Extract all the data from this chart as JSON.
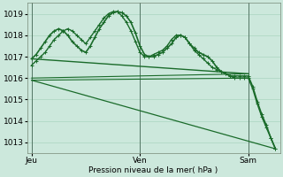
{
  "bg_color": "#cce8dc",
  "grid_color": "#aad4c0",
  "line_color": "#1a6b2a",
  "marker": "+",
  "xlabel": "Pression niveau de la mer( hPa )",
  "yticks": [
    1013,
    1014,
    1015,
    1016,
    1017,
    1018,
    1019
  ],
  "xtick_labels": [
    "Jeu",
    "Ven",
    "Sam"
  ],
  "xtick_positions": [
    0,
    48,
    96
  ],
  "ylim": [
    1012.5,
    1019.5
  ],
  "xlim": [
    -2,
    110
  ],
  "vlines": [
    0,
    48,
    96
  ],
  "lines": [
    {
      "x": [
        0,
        2,
        4,
        6,
        8,
        10,
        12,
        14,
        16,
        18,
        20,
        22,
        24,
        26,
        28,
        30,
        32,
        34,
        36,
        38,
        40,
        42,
        44,
        46,
        48,
        50,
        52,
        54,
        56,
        58,
        60,
        62,
        64,
        66,
        68,
        70,
        72,
        74,
        76,
        78,
        80,
        82,
        84,
        86,
        88,
        90,
        92,
        94,
        96,
        98,
        100,
        102,
        104,
        106,
        108
      ],
      "y": [
        1016.9,
        1017.1,
        1017.4,
        1017.7,
        1018.0,
        1018.2,
        1018.3,
        1018.2,
        1018.0,
        1017.7,
        1017.5,
        1017.3,
        1017.2,
        1017.5,
        1017.9,
        1018.3,
        1018.6,
        1018.9,
        1019.05,
        1019.1,
        1019.05,
        1018.9,
        1018.6,
        1018.1,
        1017.5,
        1017.1,
        1017.0,
        1017.0,
        1017.1,
        1017.2,
        1017.4,
        1017.6,
        1017.9,
        1018.0,
        1017.9,
        1017.6,
        1017.4,
        1017.2,
        1017.1,
        1017.0,
        1016.8,
        1016.5,
        1016.3,
        1016.2,
        1016.1,
        1016.0,
        1016.0,
        1016.0,
        1016.0,
        1015.5,
        1014.8,
        1014.2,
        1013.7,
        1013.2,
        1012.7
      ],
      "lw": 1.2,
      "marker_size": 3,
      "has_marker": true
    },
    {
      "x": [
        0,
        2,
        4,
        6,
        8,
        10,
        12,
        14,
        16,
        18,
        20,
        22,
        24,
        26,
        28,
        30,
        32,
        34,
        36,
        38,
        40,
        42,
        44,
        46,
        48,
        50,
        52,
        54,
        56,
        58,
        60,
        62,
        64,
        66,
        68,
        70,
        72,
        74,
        76,
        78,
        80,
        82,
        84,
        86,
        88,
        90,
        92,
        94,
        96,
        98,
        100,
        102,
        104,
        106,
        108
      ],
      "y": [
        1016.6,
        1016.8,
        1017.0,
        1017.2,
        1017.5,
        1017.8,
        1018.0,
        1018.2,
        1018.3,
        1018.2,
        1018.0,
        1017.8,
        1017.6,
        1017.9,
        1018.2,
        1018.5,
        1018.8,
        1019.0,
        1019.1,
        1019.1,
        1018.9,
        1018.6,
        1018.2,
        1017.7,
        1017.2,
        1017.0,
        1017.0,
        1017.1,
        1017.2,
        1017.3,
        1017.5,
        1017.8,
        1018.0,
        1018.0,
        1017.9,
        1017.6,
        1017.3,
        1017.1,
        1016.9,
        1016.7,
        1016.5,
        1016.4,
        1016.3,
        1016.2,
        1016.1,
        1016.1,
        1016.1,
        1016.1,
        1016.1,
        1015.6,
        1014.9,
        1014.3,
        1013.8,
        1013.2,
        1012.7
      ],
      "lw": 1.0,
      "marker_size": 3,
      "has_marker": true
    },
    {
      "x": [
        0,
        96
      ],
      "y": [
        1016.9,
        1016.2
      ],
      "lw": 1.0,
      "marker_size": 0,
      "has_marker": false
    },
    {
      "x": [
        0,
        96
      ],
      "y": [
        1016.0,
        1016.2
      ],
      "lw": 0.8,
      "marker_size": 0,
      "has_marker": false
    },
    {
      "x": [
        0,
        96
      ],
      "y": [
        1015.9,
        1016.0
      ],
      "lw": 0.8,
      "marker_size": 0,
      "has_marker": false
    },
    {
      "x": [
        0,
        108
      ],
      "y": [
        1015.9,
        1012.7
      ],
      "lw": 0.9,
      "marker_size": 0,
      "has_marker": false
    }
  ]
}
